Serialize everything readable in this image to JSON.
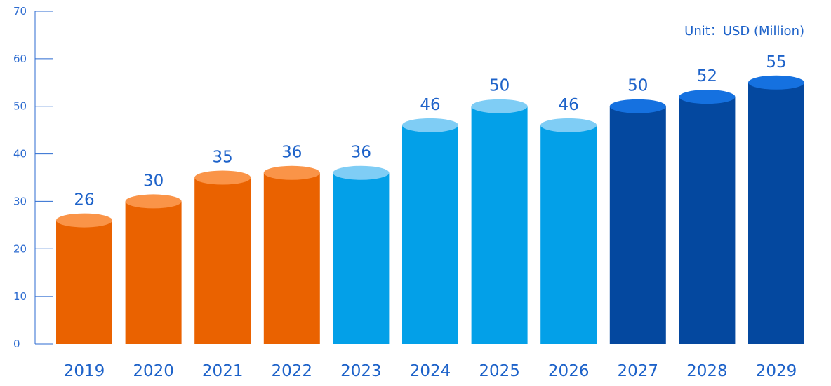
{
  "chart_data": {
    "type": "bar",
    "unit_label": "Unit：USD (Million)",
    "categories": [
      "2019",
      "2020",
      "2021",
      "2022",
      "2023",
      "2024",
      "2025",
      "2026",
      "2027",
      "2028",
      "2029"
    ],
    "values": [
      26,
      30,
      35,
      36,
      36,
      46,
      50,
      46,
      50,
      52,
      55
    ],
    "data_labels": [
      "26",
      "30",
      "35",
      "36",
      "36",
      "46",
      "50",
      "46",
      "50",
      "52",
      "55"
    ],
    "yticks": [
      0,
      10,
      20,
      30,
      40,
      50,
      60,
      70
    ],
    "ylim": [
      0,
      70
    ],
    "grid": false,
    "bar_colors": {
      "2019": {
        "body": "#ea6200",
        "top": "#fa9448"
      },
      "2020": {
        "body": "#ea6200",
        "top": "#fa9448"
      },
      "2021": {
        "body": "#ea6200",
        "top": "#fa9448"
      },
      "2022": {
        "body": "#ea6200",
        "top": "#fa9448"
      },
      "2023": {
        "body": "#03a0e8",
        "top": "#7fcdf5"
      },
      "2024": {
        "body": "#03a0e8",
        "top": "#7fcdf5"
      },
      "2025": {
        "body": "#03a0e8",
        "top": "#7fcdf5"
      },
      "2026": {
        "body": "#03a0e8",
        "top": "#7fcdf5"
      },
      "2027": {
        "body": "#04489f",
        "top": "#1571e0"
      },
      "2028": {
        "body": "#04489f",
        "top": "#1571e0"
      },
      "2029": {
        "body": "#04489f",
        "top": "#1571e0"
      }
    },
    "axis_color": "#2c6bd0",
    "label_color": "#1d62c9"
  }
}
